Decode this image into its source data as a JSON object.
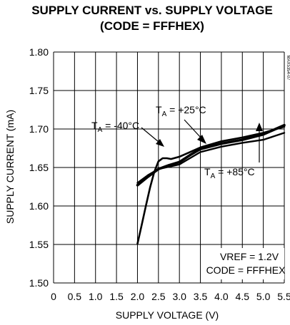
{
  "chart_data": {
    "type": "line",
    "title_line1": "SUPPLY CURRENT vs. SUPPLY VOLTAGE",
    "title_line2": "(CODE = FFFHEX)",
    "xlabel": "SUPPLY VOLTAGE (V)",
    "ylabel": "SUPPLY CURRENT (mA)",
    "xlim": [
      0,
      5.5
    ],
    "ylim": [
      1.5,
      1.8
    ],
    "grid": true,
    "x_ticks": [
      "0",
      "0.5",
      "1.0",
      "1.5",
      "2.0",
      "2.5",
      "3.0",
      "3.5",
      "4.0",
      "4.5",
      "5.0",
      "5.5"
    ],
    "y_ticks": [
      "1.80",
      "1.75",
      "1.70",
      "1.65",
      "1.60",
      "1.55",
      "1.50"
    ],
    "series": [
      {
        "name": "TA = -40°C",
        "x": [
          2.0,
          2.1,
          2.2,
          2.3,
          2.4,
          2.5,
          2.6,
          2.7,
          2.8,
          3.0,
          3.25,
          3.5,
          4.0,
          4.5,
          5.0,
          5.5
        ],
        "y": [
          1.551,
          1.575,
          1.6,
          1.624,
          1.644,
          1.658,
          1.662,
          1.662,
          1.661,
          1.664,
          1.67,
          1.676,
          1.684,
          1.689,
          1.695,
          1.703
        ]
      },
      {
        "name": "TA = +25°C",
        "x": [
          2.0,
          2.25,
          2.5,
          2.75,
          3.0,
          3.25,
          3.5,
          4.0,
          4.5,
          5.0,
          5.5
        ],
        "y": [
          1.627,
          1.638,
          1.648,
          1.653,
          1.657,
          1.666,
          1.674,
          1.681,
          1.686,
          1.693,
          1.705
        ]
      },
      {
        "name": "TA = +85°C",
        "x": [
          2.0,
          2.25,
          2.5,
          2.75,
          3.0,
          3.25,
          3.5,
          4.0,
          4.5,
          5.0,
          5.5
        ],
        "y": [
          1.63,
          1.64,
          1.648,
          1.651,
          1.654,
          1.662,
          1.67,
          1.677,
          1.682,
          1.686,
          1.695
        ]
      }
    ],
    "annotations": {
      "t_minus40": {
        "main": "T",
        "sub": "A",
        "rest": " = -40°C"
      },
      "t_plus25": {
        "main": "T",
        "sub": "A",
        "rest": " = +25°C"
      },
      "t_plus85": {
        "main": "T",
        "sub": "A",
        "rest": " = +85°C"
      },
      "vref": "VREF = 1.2V",
      "code": "CODE = FFFHEX",
      "side_mark": "MAX5354-07"
    }
  }
}
